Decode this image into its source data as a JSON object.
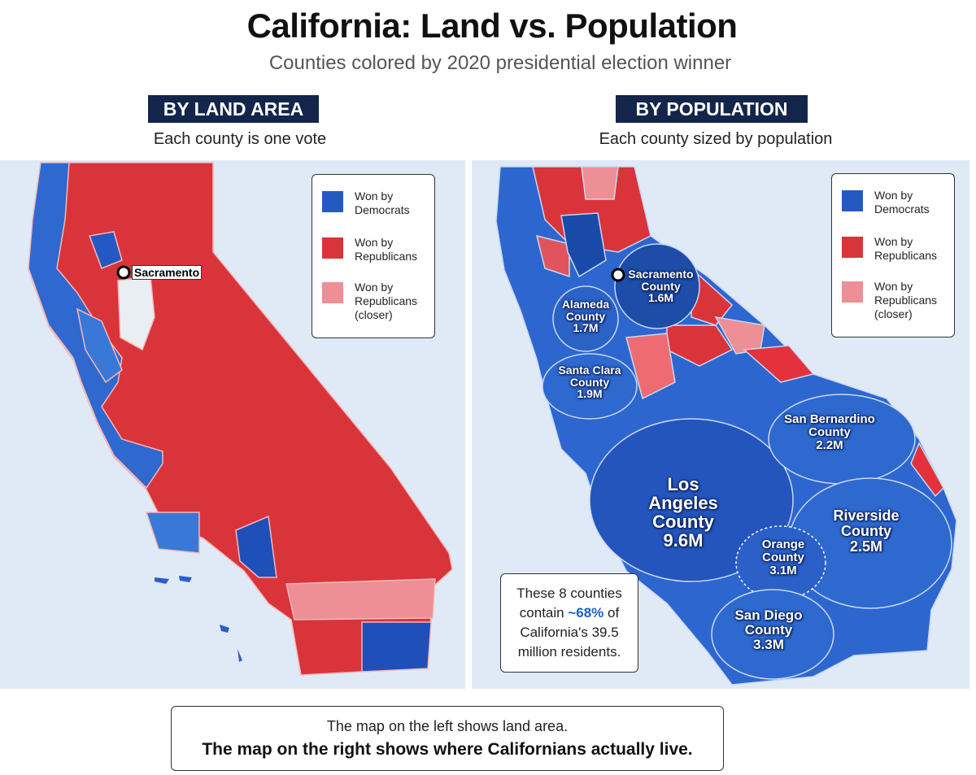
{
  "header": {
    "title": "California: Land vs. Population",
    "subtitle": "Counties colored by 2020 presidential election winner"
  },
  "panels": [
    {
      "heading": "BY LAND AREA",
      "caption": "Each county is one vote",
      "marker_label": "Sacramento",
      "legend": [
        "Won by Democrats",
        "Won by Republicans",
        "Won by Republicans (closer)"
      ]
    },
    {
      "heading": "BY POPULATION",
      "caption": "Each county sized by population",
      "legend": [
        "Won by Democrats",
        "Won by Republicans",
        "Won by Republicans (closer)"
      ],
      "counties": [
        {
          "name": "Sacramento County",
          "population": "1.6M"
        },
        {
          "name": "Alameda County",
          "population": "1.7M"
        },
        {
          "name": "Santa Clara County",
          "population": "1.9M"
        },
        {
          "name": "San Bernardino County",
          "population": "2.2M"
        },
        {
          "name": "Los Angeles County",
          "population": "9.6M"
        },
        {
          "name": "Riverside County",
          "population": "2.5M"
        },
        {
          "name": "Orange County",
          "population": "3.1M"
        },
        {
          "name": "San Diego County",
          "population": "3.3M"
        }
      ]
    }
  ],
  "callout": {
    "before": "These 8 counties contain",
    "highlight": "~68%",
    "after": "of California's 39.5 million residents."
  },
  "footer": {
    "line1": "The map on the left shows land area.",
    "line2": "The map on the right shows where Californians actually live."
  }
}
